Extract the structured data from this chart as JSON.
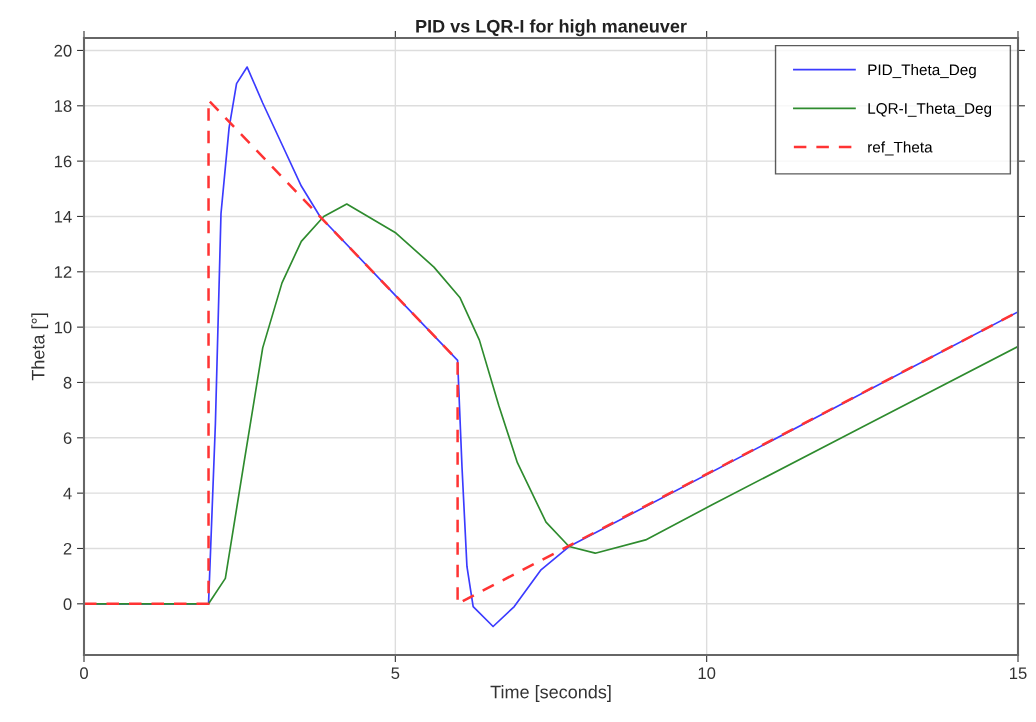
{
  "chart_data": {
    "type": "line",
    "title": "PID vs LQR-I for high maneuver",
    "xlabel": "Time [seconds]",
    "ylabel": "Theta [°]",
    "xlim": [
      0,
      15
    ],
    "ylim": [
      -1.85,
      20.45
    ],
    "xticks": [
      0,
      5,
      10,
      15
    ],
    "yticks": [
      0,
      2,
      4,
      6,
      8,
      10,
      12,
      14,
      16,
      18,
      20
    ],
    "grid": true,
    "legend": "top right",
    "marker": "none",
    "series": [
      {
        "name": "PID_Theta_Deg",
        "color": "#3b3bff",
        "line_style": "solid",
        "x": [
          0,
          2,
          2.11,
          2.2,
          2.33,
          2.45,
          2.62,
          2.87,
          3.18,
          3.49,
          3.79,
          5,
          6,
          6.07,
          6.15,
          6.25,
          6.57,
          6.91,
          7.34,
          7.79,
          15
        ],
        "values": [
          0,
          0,
          6.5,
          14.1,
          17.2,
          18.8,
          19.4,
          18.1,
          16.6,
          15.1,
          14.0,
          11.15,
          8.8,
          4.97,
          1.35,
          -0.1,
          -0.82,
          -0.1,
          1.23,
          2.07,
          10.55
        ]
      },
      {
        "name": "LQR-I_Theta_Deg",
        "color": "#2e8b2e",
        "line_style": "solid",
        "x": [
          0,
          2,
          2.27,
          2.57,
          2.87,
          3.18,
          3.49,
          3.85,
          4.22,
          5.01,
          5.62,
          6.04,
          6.35,
          6.66,
          6.96,
          7.42,
          7.79,
          8.21,
          9.02,
          10.08,
          12.5,
          15
        ],
        "values": [
          0,
          0,
          0.92,
          5.1,
          9.25,
          11.6,
          13.1,
          14.0,
          14.45,
          13.4,
          12.17,
          11.06,
          9.53,
          7.18,
          5.1,
          2.95,
          2.07,
          1.83,
          2.31,
          3.57,
          6.39,
          9.3
        ]
      },
      {
        "name": "ref_Theta",
        "color": "#ff3333",
        "line_style": "dashed",
        "x": [
          0,
          2,
          2,
          6,
          6,
          15
        ],
        "values": [
          0,
          0,
          18.2,
          8.8,
          0,
          10.55
        ]
      }
    ]
  }
}
